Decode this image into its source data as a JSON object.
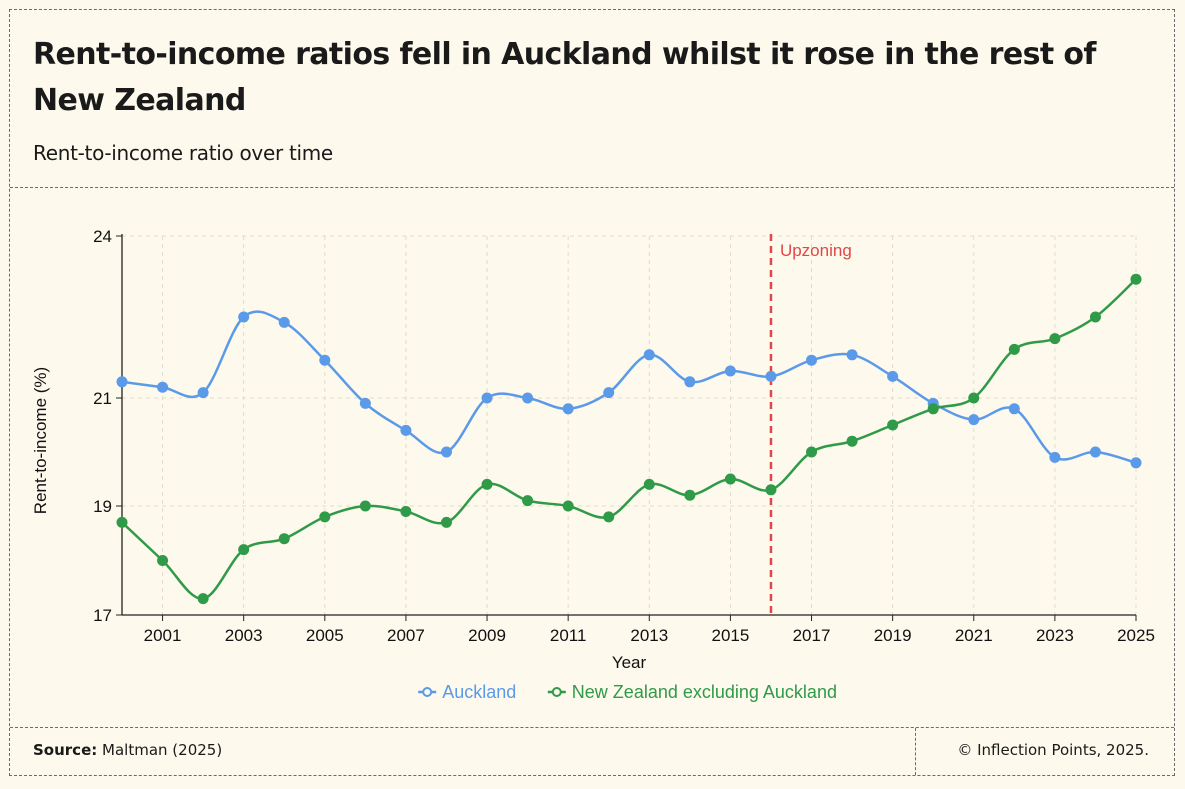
{
  "header": {
    "title": "Rent-to-income ratios fell in Auckland whilst it rose in the rest of New Zealand",
    "subtitle": "Rent-to-income ratio over time"
  },
  "footer": {
    "source_label": "Source:",
    "source_value": "Maltman (2025)",
    "copyright": "© Inflection Points, 2025."
  },
  "chart_data": {
    "type": "line",
    "x": [
      2000,
      2001,
      2002,
      2003,
      2004,
      2005,
      2006,
      2007,
      2008,
      2009,
      2010,
      2011,
      2012,
      2013,
      2014,
      2015,
      2016,
      2017,
      2018,
      2019,
      2020,
      2021,
      2022,
      2023,
      2024,
      2025
    ],
    "x_ticks": [
      2001,
      2003,
      2005,
      2007,
      2009,
      2011,
      2013,
      2015,
      2017,
      2019,
      2021,
      2023,
      2025
    ],
    "y_ticks": [
      17,
      19,
      21,
      24
    ],
    "xlabel": "Year",
    "ylabel": "Rent-to-income (%)",
    "series": [
      {
        "name": "Auckland",
        "color": "#5b9ae8",
        "values": [
          21.3,
          21.2,
          21.1,
          22.5,
          22.4,
          21.7,
          20.9,
          20.4,
          20.0,
          21.0,
          21.0,
          20.8,
          21.1,
          21.8,
          21.3,
          21.5,
          21.4,
          21.7,
          21.8,
          21.4,
          20.9,
          20.6,
          20.8,
          19.9,
          20.0,
          19.8
        ]
      },
      {
        "name": "New Zealand excluding Auckland",
        "color": "#2f9a48",
        "values": [
          18.7,
          18.0,
          17.3,
          18.2,
          18.4,
          18.8,
          19.0,
          18.9,
          18.7,
          19.4,
          19.1,
          19.0,
          18.8,
          19.4,
          19.2,
          19.5,
          19.3,
          20.0,
          20.2,
          20.5,
          20.8,
          21.0,
          21.9,
          22.1,
          22.5,
          23.2
        ]
      }
    ],
    "annotation": {
      "label": "Upzoning",
      "x": 2016,
      "color": "#e04848"
    },
    "grid": true,
    "legend": "bottom-center"
  }
}
